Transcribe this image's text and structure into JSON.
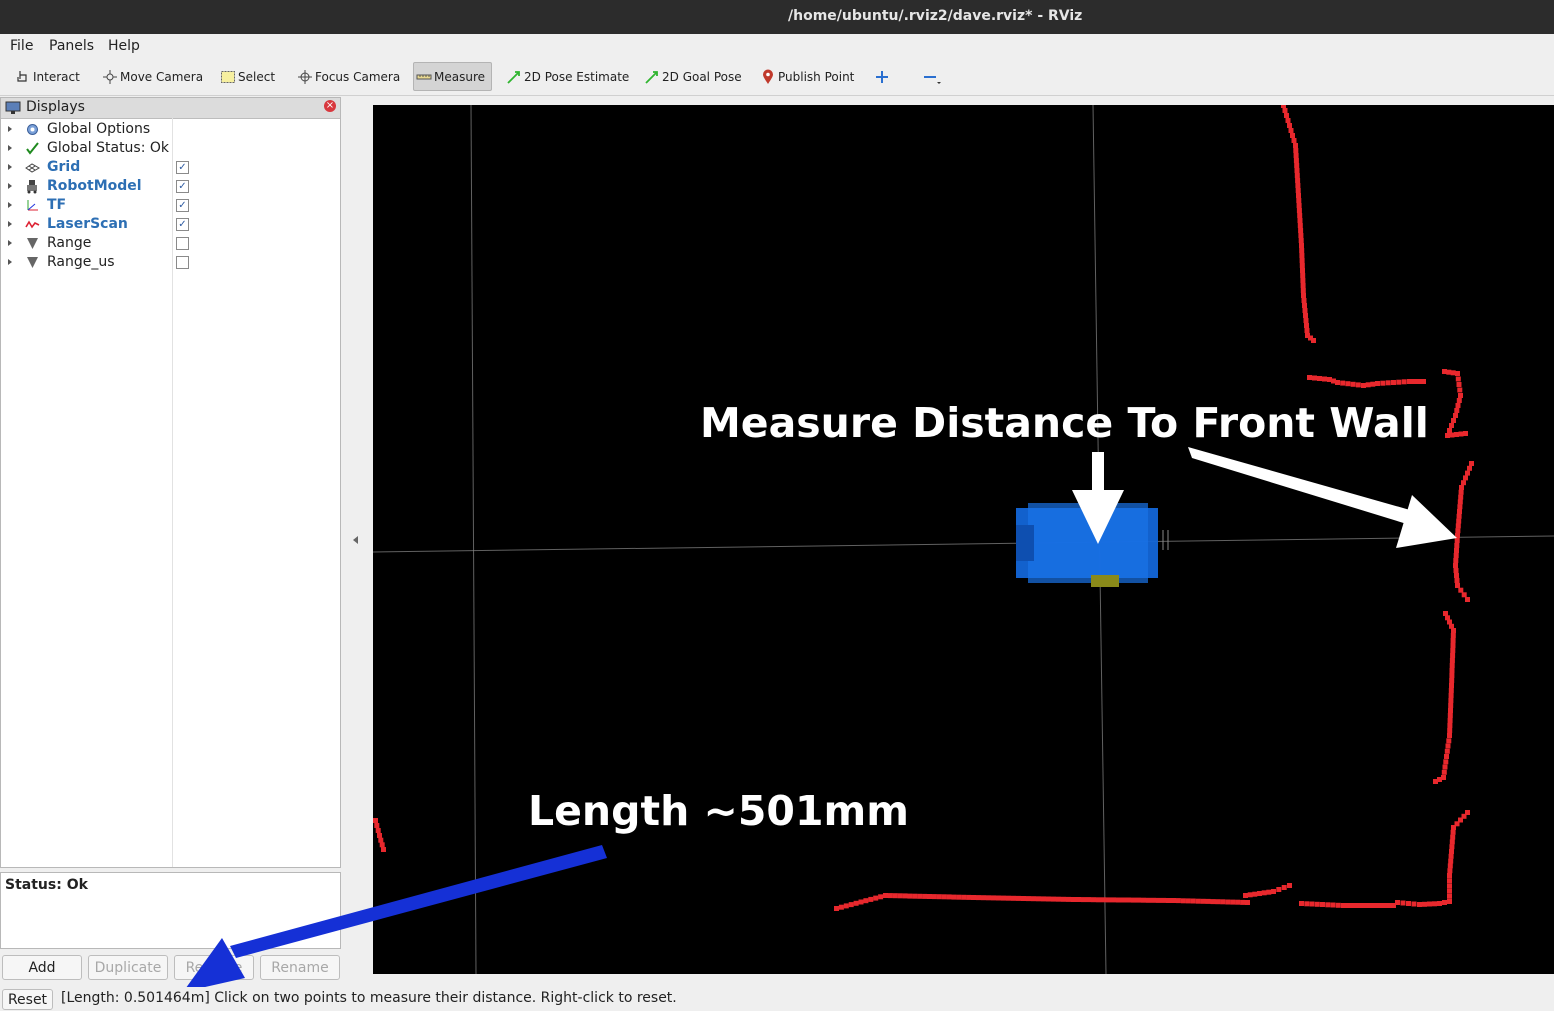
{
  "window": {
    "title": "/home/ubuntu/.rviz2/dave.rviz* - RViz"
  },
  "menu": {
    "items": [
      "File",
      "Panels",
      "Help"
    ]
  },
  "toolbar": {
    "tools": [
      "Interact",
      "Move Camera",
      "Select",
      "Focus Camera",
      "Measure",
      "2D Pose Estimate",
      "2D Goal Pose",
      "Publish Point"
    ],
    "active_tool": "Measure"
  },
  "displays": {
    "title": "Displays",
    "items": [
      {
        "label": "Global Options",
        "icon": "gear-icon",
        "style": "normal",
        "checked": null
      },
      {
        "label": "Global Status: Ok",
        "icon": "check-icon",
        "style": "normal",
        "checked": null
      },
      {
        "label": "Grid",
        "icon": "grid-icon",
        "style": "highlight",
        "checked": true
      },
      {
        "label": "RobotModel",
        "icon": "robot-icon",
        "style": "highlight",
        "checked": true
      },
      {
        "label": "TF",
        "icon": "axes-icon",
        "style": "highlight",
        "checked": true
      },
      {
        "label": "LaserScan",
        "icon": "laser-icon",
        "style": "highlight",
        "checked": true
      },
      {
        "label": "Range",
        "icon": "range-icon",
        "style": "normal",
        "checked": false
      },
      {
        "label": "Range_us",
        "icon": "range-icon",
        "style": "normal",
        "checked": false
      }
    ],
    "status_text": "Status: Ok",
    "buttons": {
      "add": "Add",
      "duplicate": "Duplicate",
      "remove": "Remove",
      "rename": "Rename"
    }
  },
  "statusbar": {
    "reset_label": "Reset",
    "message": "[Length: 0.501464m] Click on two points to measure their distance. Right-click to reset."
  },
  "annotations": {
    "front_wall": "Measure Distance To Front Wall",
    "length": "Length ~501mm"
  },
  "colors": {
    "laser": "#e8282d",
    "robot": "#1366d8",
    "highlight_text": "#2d6fb4",
    "arrow_blue": "#1530d6"
  }
}
